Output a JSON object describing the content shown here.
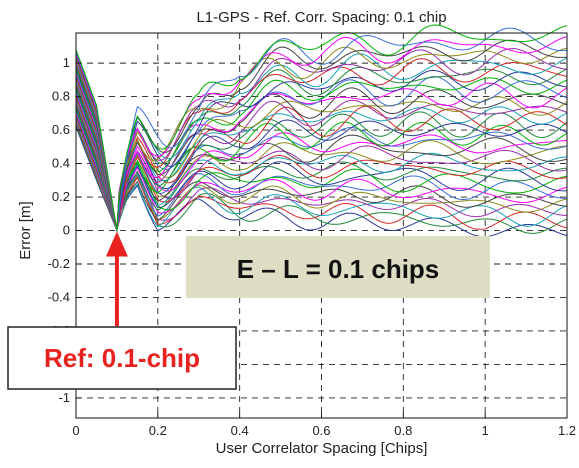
{
  "chart_data": {
    "type": "line",
    "title": "L1-GPS - Ref. Corr. Spacing:  0.1 chip",
    "xlabel": "User Correlator Spacing [Chips]",
    "ylabel": "Error [m]",
    "xlim": [
      0,
      1.2
    ],
    "ylim": [
      -1.12,
      1.18
    ],
    "xticks": [
      0,
      0.2,
      0.4,
      0.6,
      0.8,
      1,
      1.2
    ],
    "xtick_labels": [
      "0",
      "0.2",
      "0.4",
      "0.6",
      "0.8",
      "1",
      "1.2"
    ],
    "yticks": [
      1,
      0.8,
      0.6,
      0.4,
      0.2,
      0,
      -0.2,
      -0.4,
      -0.6,
      -0.8,
      -1
    ],
    "ytick_labels": [
      "1",
      "0.8",
      "0.6",
      "0.4",
      "0.2",
      "0",
      "-0.2",
      "-0.4",
      "-0.6",
      "-0.8",
      "-1"
    ],
    "grid": true,
    "grid_style": "dashed",
    "series_count": 40,
    "envelope": {
      "x": [
        0,
        0.05,
        0.1,
        0.15,
        0.2,
        0.3,
        0.4,
        0.6,
        0.8,
        1.0,
        1.2
      ],
      "y_min": [
        0.62,
        0.3,
        0.0,
        0.25,
        0.05,
        0.15,
        0.1,
        0.05,
        0.05,
        0.0,
        0.0
      ],
      "y_max": [
        1.08,
        0.75,
        0.0,
        0.58,
        0.63,
        0.68,
        1.02,
        1.12,
        1.14,
        1.17,
        1.16
      ]
    },
    "annotations": {
      "ref_label": "Ref: 0.1-chip",
      "ref_x": 0.1,
      "ref_y": 0,
      "box_label": "E – L = 0.1 chips"
    }
  },
  "colors": {
    "box_fill": "#dedec4",
    "ref_text": "#e8231f",
    "arrow": "#e8231f",
    "series": [
      "#2b3a9c",
      "#1f8a3a",
      "#d62728",
      "#17a2b8",
      "#9b2fae",
      "#8c8c1a",
      "#444444",
      "#ff00ff",
      "#3b6fd6",
      "#00b300"
    ]
  }
}
